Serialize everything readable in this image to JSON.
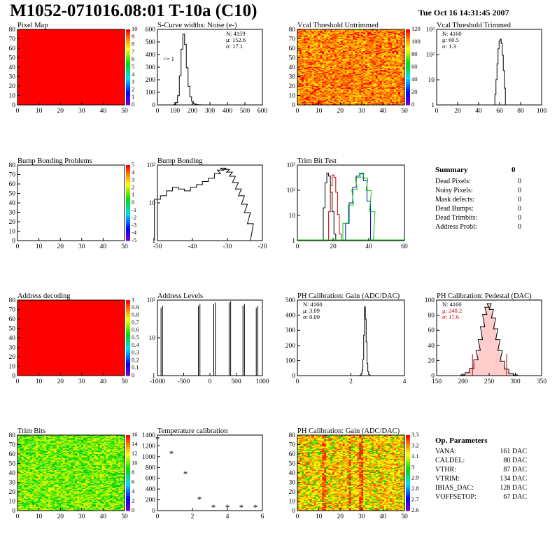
{
  "header": {
    "title": "M1052-071016.08:01 T-10a (C10)",
    "date": "Tue Oct 16 14:31:45 2007"
  },
  "panels": [
    {
      "id": "pixel-map",
      "title": "Pixel Map",
      "kind": "map",
      "color": "#ff0000",
      "xticks": [
        "0",
        "10",
        "20",
        "30",
        "40",
        "50"
      ],
      "yticks": [
        "0",
        "10",
        "20",
        "30",
        "40",
        "50",
        "60",
        "70",
        "80"
      ],
      "palette_labels": [
        "0",
        "1",
        "2",
        "3",
        "4",
        "5",
        "6",
        "7",
        "8",
        "9",
        "10"
      ]
    },
    {
      "id": "scurve",
      "title": "S-Curve widths: Noise (e-)",
      "kind": "hist",
      "xticks": [
        "0",
        "100",
        "200",
        "300",
        "400",
        "500",
        "600"
      ],
      "yticks": [
        "0",
        "100",
        "200",
        "300",
        "400",
        "500",
        "600"
      ],
      "stats": [
        "N: 4159",
        "μ: 152.6",
        "σ: 17.1"
      ],
      "annotation": "<= 1"
    },
    {
      "id": "vcal-untrimmed",
      "title": "Vcal Threshold Untrimmed",
      "kind": "noise-map",
      "scheme": "hot",
      "xticks": [
        "0",
        "10",
        "20",
        "30",
        "40",
        "50"
      ],
      "yticks": [
        "0",
        "10",
        "20",
        "30",
        "40",
        "50",
        "60",
        "70",
        "80"
      ],
      "palette_labels": [
        "0",
        "20",
        "40",
        "60",
        "80",
        "100",
        "120"
      ]
    },
    {
      "id": "vcal-trimmed",
      "title": "Vcal Threshold Trimmed",
      "kind": "hist",
      "xticks": [
        "0",
        "20",
        "40",
        "60",
        "80",
        "100"
      ],
      "yticks": [
        "1",
        "10",
        "10²",
        "10³"
      ],
      "stats": [
        "N: 4160",
        "μ: 60.5",
        "σ: 1.3"
      ]
    },
    {
      "id": "bump-problems",
      "title": "Bump Bonding Problems",
      "kind": "empty-map",
      "xticks": [
        "0",
        "10",
        "20",
        "30",
        "40",
        "50"
      ],
      "yticks": [
        "0",
        "10",
        "20",
        "30",
        "40",
        "50",
        "60",
        "70",
        "80"
      ],
      "palette_labels": [
        "-5",
        "-4",
        "-3",
        "-2",
        "-1",
        "0",
        "1",
        "2",
        "3",
        "4",
        "5"
      ]
    },
    {
      "id": "bump-bonding",
      "title": "Bump Bonding",
      "kind": "hist",
      "xticks": [
        "-50",
        "-40",
        "-30",
        "-20"
      ],
      "yticks": [
        "1",
        "10",
        "10²"
      ]
    },
    {
      "id": "trim-bit-test",
      "title": "Trim Bit Test",
      "kind": "hist",
      "xticks": [
        "0",
        "20",
        "40",
        "60"
      ],
      "yticks": [
        "1",
        "10",
        "10²",
        "10³"
      ]
    },
    {
      "id": "address-decoding",
      "title": "Address decoding",
      "kind": "map",
      "color": "#ff0000",
      "xticks": [
        "0",
        "10",
        "20",
        "30",
        "40",
        "50"
      ],
      "yticks": [
        "0",
        "10",
        "20",
        "30",
        "40",
        "50",
        "60",
        "70",
        "80"
      ],
      "palette_labels": [
        "0",
        "0.1",
        "0.2",
        "0.3",
        "0.4",
        "0.5",
        "0.6",
        "0.7",
        "0.8",
        "0.9",
        "1"
      ]
    },
    {
      "id": "address-levels",
      "title": "Address Levels",
      "kind": "hist",
      "xticks": [
        "-1000",
        "-500",
        "0",
        "500",
        "1000"
      ],
      "yticks": [
        "1",
        "10",
        "10²"
      ]
    },
    {
      "id": "ph-gain",
      "title": "PH Calibration: Gain (ADC/DAC)",
      "kind": "hist",
      "xticks": [
        "0",
        "2",
        "4"
      ],
      "yticks": [
        "0",
        "100",
        "200",
        "300",
        "400",
        "500"
      ],
      "stats": [
        "N: 4160",
        "μ: 3.09",
        "σ: 0.09"
      ]
    },
    {
      "id": "ph-pedestal",
      "title": "PH Calibration: Pedestal (DAC)",
      "kind": "hist",
      "xticks": [
        "150",
        "200",
        "250",
        "300",
        "350"
      ],
      "yticks": [
        "0",
        "20",
        "40",
        "60",
        "80",
        "100"
      ],
      "stats": [
        "N: 4160",
        "μ: 240.2",
        "σ: 17.6"
      ]
    },
    {
      "id": "trim-bits",
      "title": "Trim Bits",
      "kind": "noise-map",
      "scheme": "green",
      "xticks": [
        "0",
        "10",
        "20",
        "30",
        "40",
        "50"
      ],
      "yticks": [
        "0",
        "10",
        "20",
        "30",
        "40",
        "50",
        "60",
        "70",
        "80"
      ],
      "palette_labels": [
        "0",
        "2",
        "4",
        "6",
        "8",
        "10",
        "12",
        "14",
        "16"
      ]
    },
    {
      "id": "temperature",
      "title": "Temperature calibration",
      "kind": "scatter",
      "xticks": [
        "0",
        "2",
        "4",
        "6"
      ],
      "yticks": [
        "0",
        "200",
        "400",
        "600",
        "800",
        "1000",
        "1200",
        "1400"
      ]
    },
    {
      "id": "ph-gain-map",
      "title": "PH Calibration: Gain (ADC/DAC)",
      "kind": "noise-map",
      "scheme": "gain",
      "xticks": [
        "0",
        "10",
        "20",
        "30",
        "40",
        "50"
      ],
      "yticks": [
        "0",
        "10",
        "20",
        "30",
        "40",
        "50",
        "60",
        "70",
        "80"
      ],
      "palette_labels": [
        "2.6",
        "2.7",
        "2.8",
        "2.9",
        "3",
        "3.1",
        "3.2",
        "3.3"
      ]
    }
  ],
  "summary": {
    "title": "Summary",
    "value": "0",
    "rows": [
      {
        "label": "Dead Pixels:",
        "value": "0"
      },
      {
        "label": "Noisy Pixels:",
        "value": "0"
      },
      {
        "label": "Mask defects:",
        "value": "0"
      },
      {
        "label": "Dead Bumps:",
        "value": "0"
      },
      {
        "label": "Dead Trimbits:",
        "value": "0"
      },
      {
        "label": "Address Probl:",
        "value": "0"
      }
    ]
  },
  "op_parameters": {
    "title": "Op. Parameters",
    "rows": [
      {
        "label": "VANA:",
        "value": "161 DAC"
      },
      {
        "label": "CALDEL:",
        "value": "80 DAC"
      },
      {
        "label": "VTHR:",
        "value": "87 DAC"
      },
      {
        "label": "VTRIM:",
        "value": "134 DAC"
      },
      {
        "label": "IBIAS_DAC:",
        "value": "128 DAC"
      },
      {
        "label": "VOFFSETOP:",
        "value": "67 DAC"
      }
    ]
  },
  "chart_data": [
    {
      "type": "heatmap",
      "title": "Pixel Map",
      "xlim": [
        0,
        52
      ],
      "ylim": [
        0,
        80
      ],
      "values": "uniform 10"
    },
    {
      "type": "bar",
      "title": "S-Curve widths: Noise (e-)",
      "xlim": [
        0,
        600
      ],
      "ylim": [
        0,
        650
      ],
      "x": [
        90,
        100,
        110,
        120,
        130,
        140,
        150,
        160,
        170,
        180,
        190,
        200,
        210,
        220,
        230,
        240,
        250,
        260
      ],
      "values": [
        0,
        5,
        20,
        80,
        250,
        480,
        610,
        520,
        320,
        160,
        70,
        30,
        12,
        5,
        2,
        1,
        1,
        0
      ]
    },
    {
      "type": "heatmap",
      "title": "Vcal Threshold Untrimmed",
      "xlim": [
        0,
        52
      ],
      "ylim": [
        0,
        80
      ],
      "zlim": [
        0,
        120
      ]
    },
    {
      "type": "bar",
      "title": "Vcal Threshold Trimmed",
      "log_y": true,
      "xlim": [
        0,
        100
      ],
      "x": [
        55,
        56,
        57,
        58,
        59,
        60,
        61,
        62,
        63,
        64,
        65,
        66
      ],
      "values": [
        1,
        3,
        15,
        80,
        400,
        900,
        1100,
        700,
        200,
        40,
        6,
        1
      ]
    },
    {
      "type": "heatmap",
      "title": "Bump Bonding Problems",
      "xlim": [
        0,
        52
      ],
      "ylim": [
        0,
        80
      ],
      "zlim": [
        -5,
        5
      ],
      "values": "empty"
    },
    {
      "type": "bar",
      "title": "Bump Bonding",
      "log_y": true,
      "xlim": [
        -50,
        -15
      ],
      "x": [
        -50,
        -48,
        -46,
        -44,
        -42,
        -40,
        -38,
        -36,
        -34,
        -32,
        -30,
        -29,
        -28,
        -27,
        -26,
        -25,
        -24,
        -23,
        -22,
        -21,
        -20,
        -19,
        -18,
        -17
      ],
      "values": [
        30,
        40,
        60,
        80,
        70,
        60,
        80,
        100,
        130,
        170,
        250,
        330,
        390,
        350,
        280,
        200,
        120,
        70,
        40,
        20,
        10,
        4,
        1,
        1
      ]
    },
    {
      "type": "line",
      "title": "Trim Bit Test",
      "log_y": true,
      "xlim": [
        0,
        60
      ],
      "series": [
        {
          "color": "#000000",
          "x": [
            14,
            15,
            16,
            17,
            18,
            19,
            20,
            21,
            22
          ],
          "values": [
            1,
            30,
            400,
            1100,
            800,
            150,
            20,
            2,
            1
          ]
        },
        {
          "color": "#cc0000",
          "x": [
            17,
            18,
            19,
            20,
            21,
            22,
            23,
            24,
            25
          ],
          "values": [
            1,
            20,
            300,
            900,
            700,
            150,
            15,
            2,
            1
          ]
        },
        {
          "color": "#0000cc",
          "x": [
            26,
            28,
            30,
            32,
            34,
            36,
            38,
            40,
            42
          ],
          "values": [
            1,
            6,
            50,
            250,
            800,
            1000,
            500,
            60,
            1
          ]
        },
        {
          "color": "#00cc00",
          "x": [
            24,
            27,
            30,
            32,
            34,
            36,
            38,
            40,
            42,
            44
          ],
          "values": [
            1,
            6,
            40,
            200,
            700,
            1100,
            650,
            180,
            20,
            1
          ]
        }
      ]
    },
    {
      "type": "heatmap",
      "title": "Address decoding",
      "xlim": [
        0,
        52
      ],
      "ylim": [
        0,
        80
      ],
      "values": "uniform 1"
    },
    {
      "type": "bar",
      "title": "Address Levels",
      "log_y": true,
      "xlim": [
        -1050,
        1000
      ],
      "x": [
        -980,
        -950,
        -250,
        -220,
        50,
        80,
        350,
        380,
        620,
        650,
        880,
        910
      ],
      "values": [
        500,
        600,
        600,
        700,
        700,
        800,
        800,
        900,
        600,
        700,
        500,
        600
      ]
    },
    {
      "type": "bar",
      "title": "PH Calibration: Gain (ADC/DAC)",
      "xlim": [
        -1,
        5.5
      ],
      "ylim": [
        0,
        560
      ],
      "x": [
        2.8,
        2.85,
        2.9,
        2.95,
        3.0,
        3.05,
        3.1,
        3.15,
        3.2,
        3.25,
        3.3,
        3.35,
        3.4
      ],
      "values": [
        2,
        5,
        15,
        40,
        120,
        300,
        510,
        420,
        250,
        90,
        30,
        8,
        2
      ]
    },
    {
      "type": "bar",
      "title": "PH Calibration: Pedestal (DAC)",
      "xlim": [
        120,
        360
      ],
      "ylim": [
        0,
        105
      ],
      "x": [
        180,
        190,
        200,
        210,
        215,
        220,
        225,
        230,
        235,
        240,
        245,
        250,
        255,
        260,
        265,
        270,
        280,
        290,
        300
      ],
      "values": [
        1,
        4,
        10,
        22,
        35,
        50,
        68,
        85,
        95,
        100,
        92,
        80,
        65,
        50,
        35,
        20,
        9,
        3,
        1
      ]
    },
    {
      "type": "heatmap",
      "title": "Trim Bits",
      "xlim": [
        0,
        52
      ],
      "ylim": [
        0,
        80
      ],
      "zlim": [
        0,
        16
      ]
    },
    {
      "type": "scatter",
      "title": "Temperature calibration",
      "xlim": [
        0,
        7.5
      ],
      "ylim": [
        0,
        1450
      ],
      "x": [
        0,
        1,
        2,
        3,
        4,
        5,
        6,
        7
      ],
      "values": [
        1360,
        1090,
        700,
        210,
        55,
        55,
        55,
        55
      ]
    },
    {
      "type": "heatmap",
      "title": "PH Calibration: Gain (ADC/DAC)",
      "xlim": [
        0,
        52
      ],
      "ylim": [
        0,
        80
      ],
      "zlim": [
        2.6,
        3.3
      ]
    }
  ]
}
